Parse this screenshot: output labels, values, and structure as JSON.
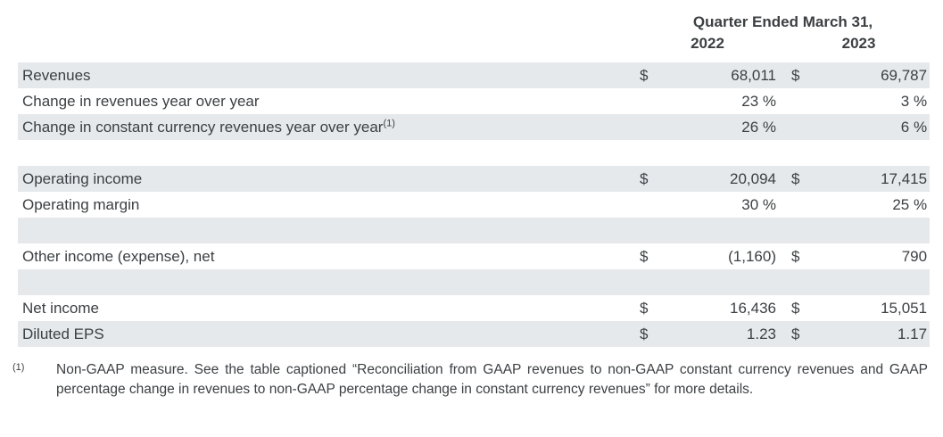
{
  "colors": {
    "row_shade": "#e5e9ec",
    "text": "#3c4043",
    "background": "#ffffff"
  },
  "table": {
    "header": {
      "title": "Quarter Ended March 31,",
      "col_2022": "2022",
      "col_2023": "2023"
    },
    "rows": [
      {
        "label": "Revenues",
        "sup": "",
        "sym2022": "$",
        "val2022": "68,011",
        "sym2023": "$",
        "val2023": "69,787",
        "shaded": true,
        "spacer": false
      },
      {
        "label": "Change in revenues year over year",
        "sup": "",
        "sym2022": "",
        "val2022": "23 %",
        "sym2023": "",
        "val2023": "3 %",
        "shaded": false,
        "spacer": false
      },
      {
        "label": "Change in constant currency revenues year over year",
        "sup": "(1)",
        "sym2022": "",
        "val2022": "26 %",
        "sym2023": "",
        "val2023": "6 %",
        "shaded": true,
        "spacer": false
      },
      {
        "label": "",
        "sup": "",
        "sym2022": "",
        "val2022": "",
        "sym2023": "",
        "val2023": "",
        "shaded": false,
        "spacer": true
      },
      {
        "label": "Operating income",
        "sup": "",
        "sym2022": "$",
        "val2022": "20,094",
        "sym2023": "$",
        "val2023": "17,415",
        "shaded": true,
        "spacer": false
      },
      {
        "label": "Operating margin",
        "sup": "",
        "sym2022": "",
        "val2022": "30 %",
        "sym2023": "",
        "val2023": "25 %",
        "shaded": false,
        "spacer": false
      },
      {
        "label": "",
        "sup": "",
        "sym2022": "",
        "val2022": "",
        "sym2023": "",
        "val2023": "",
        "shaded": true,
        "spacer": true
      },
      {
        "label": "Other income (expense), net",
        "sup": "",
        "sym2022": "$",
        "val2022": "(1,160)",
        "sym2023": "$",
        "val2023": "790",
        "shaded": false,
        "spacer": false
      },
      {
        "label": "",
        "sup": "",
        "sym2022": "",
        "val2022": "",
        "sym2023": "",
        "val2023": "",
        "shaded": true,
        "spacer": true
      },
      {
        "label": "Net income",
        "sup": "",
        "sym2022": "$",
        "val2022": "16,436",
        "sym2023": "$",
        "val2023": "15,051",
        "shaded": false,
        "spacer": false
      },
      {
        "label": "Diluted EPS",
        "sup": "",
        "sym2022": "$",
        "val2022": "1.23",
        "sym2023": "$",
        "val2023": "1.17",
        "shaded": true,
        "spacer": false
      }
    ]
  },
  "footnote": {
    "marker": "(1)",
    "text": "Non-GAAP measure. See the table captioned “Reconciliation from GAAP revenues to non-GAAP constant currency revenues and GAAP percentage change in revenues to non-GAAP percentage change in constant currency revenues” for more details."
  }
}
